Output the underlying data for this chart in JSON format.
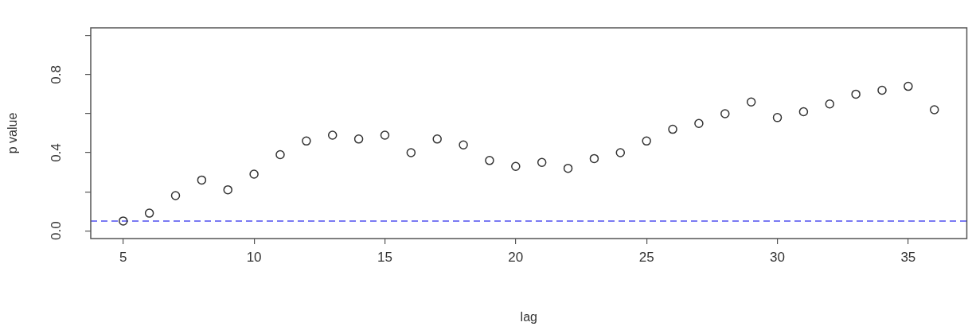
{
  "chart_data": {
    "type": "scatter",
    "xlabel": "lag",
    "ylabel": "p value",
    "x": [
      5,
      6,
      7,
      8,
      9,
      10,
      11,
      12,
      13,
      14,
      15,
      16,
      17,
      18,
      19,
      20,
      21,
      22,
      23,
      24,
      25,
      26,
      27,
      28,
      29,
      30,
      31,
      32,
      33,
      34,
      35,
      36
    ],
    "values": [
      0.05,
      0.09,
      0.18,
      0.26,
      0.21,
      0.29,
      0.39,
      0.46,
      0.49,
      0.47,
      0.49,
      0.4,
      0.47,
      0.44,
      0.36,
      0.33,
      0.35,
      0.32,
      0.37,
      0.4,
      0.46,
      0.52,
      0.55,
      0.6,
      0.66,
      0.58,
      0.61,
      0.65,
      0.7,
      0.72,
      0.74,
      0.62
    ],
    "color": "#333333",
    "marker": "circle",
    "xlim": [
      3.76,
      37.24
    ],
    "xticks": [
      5,
      10,
      15,
      20,
      25,
      30,
      35
    ],
    "ylim": [
      -0.04,
      1.04
    ],
    "yticks": [
      {
        "value": 0,
        "label": "0.0"
      },
      {
        "value": 0.2,
        "label": null
      },
      {
        "value": 0.4,
        "label": "0.4"
      },
      {
        "value": 0.6,
        "label": null
      },
      {
        "value": 0.8,
        "label": "0.8"
      },
      {
        "value": 1,
        "label": null
      }
    ],
    "ref_lines": [
      {
        "axis": "y",
        "value": 0.05,
        "color": "#4f4ff0",
        "line_style": "dashed"
      }
    ]
  }
}
